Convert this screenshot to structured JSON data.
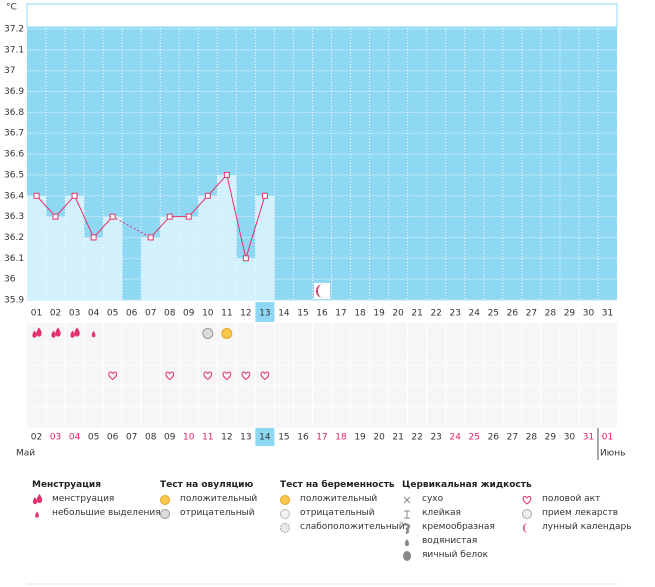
{
  "chart_data": {
    "type": "line",
    "y_unit": "°C",
    "categories": [
      "01",
      "02",
      "03",
      "04",
      "05",
      "06",
      "07",
      "08",
      "09",
      "10",
      "11",
      "12",
      "13",
      "14",
      "15",
      "16",
      "17",
      "18",
      "19",
      "20",
      "21",
      "22",
      "23",
      "24",
      "25",
      "26",
      "27",
      "28",
      "29",
      "30",
      "31"
    ],
    "values": [
      36.4,
      36.3,
      36.4,
      36.2,
      36.3,
      null,
      36.2,
      36.3,
      36.3,
      36.4,
      36.5,
      36.1,
      36.4,
      null,
      null,
      null,
      null,
      null,
      null,
      null,
      null,
      null,
      null,
      null,
      null,
      null,
      null,
      null,
      null,
      null,
      null
    ],
    "color": "#e2336b",
    "bar_color": "#d3f0fd",
    "background": "#8fd8f3",
    "ylim": [
      35.9,
      37.2
    ],
    "yticks": [
      35.9,
      36,
      36.1,
      36.2,
      36.3,
      36.4,
      36.5,
      36.6,
      36.7,
      36.8,
      36.9,
      37,
      37.1,
      37.2
    ],
    "grid": true,
    "dates": [
      "02",
      "03",
      "04",
      "05",
      "06",
      "07",
      "08",
      "09",
      "10",
      "11",
      "12",
      "13",
      "14",
      "15",
      "16",
      "17",
      "18",
      "19",
      "20",
      "21",
      "22",
      "23",
      "24",
      "25",
      "26",
      "27",
      "28",
      "29",
      "30",
      "31",
      "01"
    ],
    "weekend_indices": [
      1,
      2,
      8,
      9,
      15,
      16,
      22,
      23,
      29,
      30
    ],
    "weekend_color": "#e0245e",
    "months": [
      "Май",
      "Июнь"
    ],
    "month_start_index": 30,
    "highlight_index": 12,
    "marks": {
      "menstruation": [
        0,
        1,
        2
      ],
      "spotting": [
        3
      ],
      "ovulation_negative": [
        9
      ],
      "ovulation_positive": [
        10
      ],
      "intercourse": [
        4,
        7,
        9,
        10,
        11,
        12
      ],
      "lunar": [
        15
      ]
    }
  },
  "legend": [
    {
      "title": "Менструация",
      "items": [
        "менструация",
        "небольшие выделения"
      ]
    },
    {
      "title": "Тест на овуляцию",
      "items": [
        "положительный",
        "отрицательный"
      ]
    },
    {
      "title": "Тест на беременность",
      "items": [
        "положительный",
        "отрицательный",
        "слабоположительный"
      ]
    },
    {
      "title": "Цервикальная жидкость",
      "items": [
        "сухо",
        "клейкая",
        "кремообразная",
        "водянистая",
        "яичный белок"
      ]
    },
    {
      "items": [
        "половой акт",
        "прием лекарств",
        "лунный календарь"
      ]
    }
  ]
}
